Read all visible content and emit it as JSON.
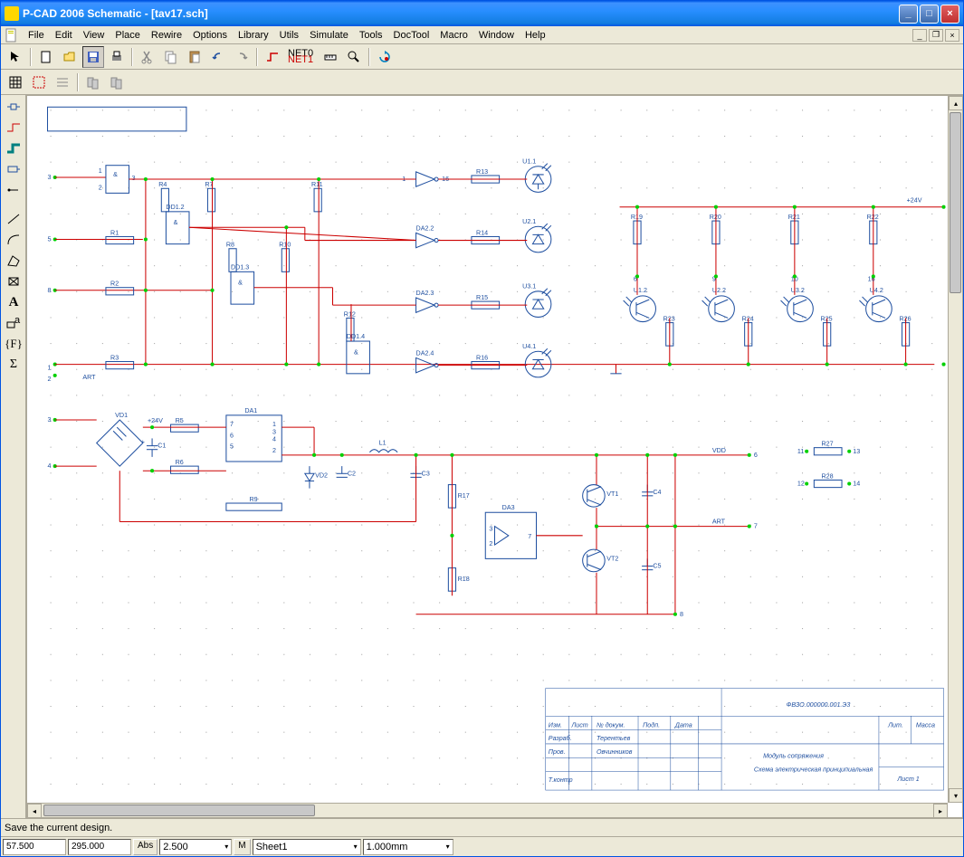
{
  "window": {
    "title": "P-CAD 2006 Schematic - [tav17.sch]"
  },
  "menu": {
    "items": [
      "File",
      "Edit",
      "View",
      "Place",
      "Rewire",
      "Options",
      "Library",
      "Utils",
      "Simulate",
      "Tools",
      "DocTool",
      "Macro",
      "Window",
      "Help"
    ]
  },
  "status": {
    "hint": "Save the current design."
  },
  "bottombar": {
    "x": "57.500",
    "y": "295.000",
    "mode": "Abs",
    "grid": "2.500",
    "m": "M",
    "sheet": "Sheet1",
    "units": "1.000mm"
  },
  "toolbar": {
    "net0": "NET0",
    "net1": "NET1"
  },
  "schematic": {
    "type": "electrical-schematic",
    "background": "#ffffff",
    "wire_color": "#cc0000",
    "component_color": "#2050a0",
    "node_color": "#00d000",
    "grid_color": "#808080",
    "components": {
      "resistors": [
        "R1",
        "R2",
        "R3",
        "R4",
        "R5",
        "R6",
        "R7",
        "R8",
        "R9",
        "R10",
        "R11",
        "R12",
        "R13",
        "R14",
        "R15",
        "R16",
        "R17",
        "R18",
        "R19",
        "R20",
        "R21",
        "R22",
        "R23",
        "R24",
        "R25",
        "R26",
        "R27",
        "R28"
      ],
      "capacitors": [
        "C1",
        "C2",
        "C3",
        "C4",
        "C5"
      ],
      "diodes": [
        "VD1",
        "VD2"
      ],
      "transistors": [
        "VT1",
        "VT2"
      ],
      "optocouplers": [
        "U1.1",
        "U1.2",
        "U2.1",
        "U2.2",
        "U3.1",
        "U3.2",
        "U4.1",
        "U4.2"
      ],
      "gates": [
        "DD1.2",
        "DD1.3",
        "DD1.4",
        "DA2.2",
        "DA2.3",
        "DA2.4"
      ],
      "ics": [
        "DA1",
        "DA3"
      ],
      "inductor": [
        "L1"
      ],
      "nets": [
        "ART",
        "VDD",
        "+24V"
      ]
    }
  },
  "titleblock": {
    "doc_number": "ФВЗО.000000.001.Э3",
    "title": "Модуль сопряжения",
    "subtitle": "Схема электрическая принципиальная",
    "headers": {
      "izm": "Изм.",
      "list": "Лист",
      "ndoc": "№ докум.",
      "podp": "Подп.",
      "date": "Дата",
      "list2": "Лит.",
      "massa": "Масса",
      "razrab": "Разраб.",
      "prov": "Пров.",
      "tkontr": "Т.контр",
      "name1": "Терентьев",
      "name2": "Овчинников",
      "sheet": "Лист 1"
    }
  }
}
